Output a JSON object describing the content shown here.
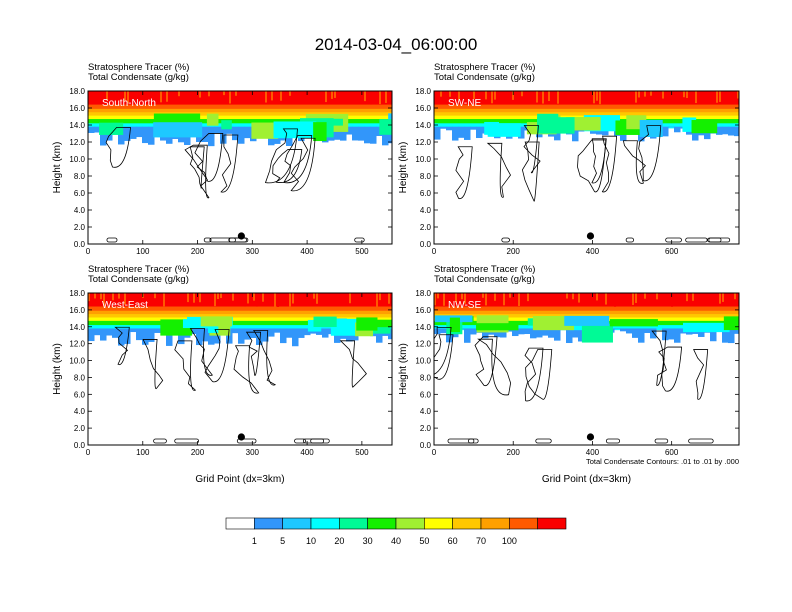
{
  "chart_data": {
    "type": "heatmap",
    "title": "2014-03-04_06:00:00",
    "field_label": "Stratosphere Tracer",
    "field_units": "(%)",
    "contour_label": "Total Condensate",
    "contour_units": "(g/kg)",
    "ylabel": "Height (km)",
    "xlabel": "Grid Point (dx=3km)",
    "y_ticks": [
      "0.0",
      "2.0",
      "4.0",
      "6.0",
      "8.0",
      "10.0",
      "12.0",
      "14.0",
      "16.0",
      "18.0"
    ],
    "ylim": [
      0,
      18
    ],
    "contour_note": "Total Condensate Contours: .01 to .01 by .000",
    "contour_level_label": ".01",
    "colorbar": {
      "levels": [
        "1",
        "5",
        "10",
        "20",
        "30",
        "40",
        "50",
        "60",
        "70",
        "100"
      ],
      "colors": [
        "#ffffff",
        "#3296fa",
        "#1ec8ff",
        "#00ffff",
        "#00fa96",
        "#14f000",
        "#a0f032",
        "#ffff00",
        "#ffc800",
        "#ffa000",
        "#ff5a00",
        "#fa0000"
      ]
    },
    "panels": [
      {
        "name": "South-North",
        "xlim": [
          0,
          555
        ],
        "x_ticks": [
          "0",
          "100",
          "200",
          "300",
          "400",
          "500"
        ],
        "x_tick_values": [
          0,
          100,
          200,
          300,
          400,
          500
        ],
        "marker_x": 280
      },
      {
        "name": "SW-NE",
        "xlim": [
          0,
          770
        ],
        "x_ticks": [
          "0",
          "200",
          "400",
          "600"
        ],
        "x_tick_values": [
          0,
          200,
          400,
          600
        ],
        "marker_x": 395
      },
      {
        "name": "West-East",
        "xlim": [
          0,
          555
        ],
        "x_ticks": [
          "0",
          "100",
          "200",
          "300",
          "400",
          "500"
        ],
        "x_tick_values": [
          0,
          100,
          200,
          300,
          400,
          500
        ],
        "marker_x": 280
      },
      {
        "name": "NW-SE",
        "xlim": [
          0,
          770
        ],
        "x_ticks": [
          "0",
          "200",
          "400",
          "600"
        ],
        "x_tick_values": [
          0,
          200,
          400,
          600
        ],
        "marker_x": 395
      }
    ]
  }
}
